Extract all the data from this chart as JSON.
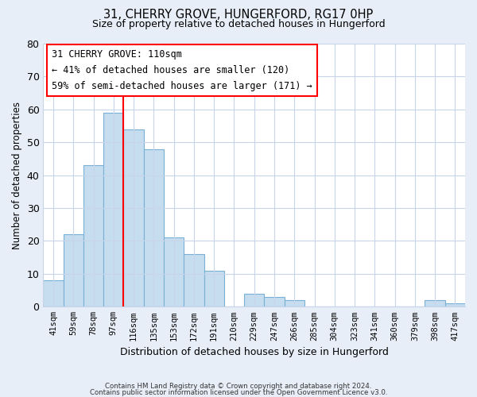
{
  "title1": "31, CHERRY GROVE, HUNGERFORD, RG17 0HP",
  "title2": "Size of property relative to detached houses in Hungerford",
  "xlabel": "Distribution of detached houses by size in Hungerford",
  "ylabel": "Number of detached properties",
  "categories": [
    "41sqm",
    "59sqm",
    "78sqm",
    "97sqm",
    "116sqm",
    "135sqm",
    "153sqm",
    "172sqm",
    "191sqm",
    "210sqm",
    "229sqm",
    "247sqm",
    "266sqm",
    "285sqm",
    "304sqm",
    "323sqm",
    "341sqm",
    "360sqm",
    "379sqm",
    "398sqm",
    "417sqm"
  ],
  "values": [
    8,
    22,
    43,
    59,
    54,
    48,
    21,
    16,
    11,
    0,
    4,
    3,
    2,
    0,
    0,
    0,
    0,
    0,
    0,
    2,
    1
  ],
  "bar_color": "#c5ddef",
  "bar_edge_color": "#7ab0d4",
  "redline_index": 4,
  "ylim": [
    0,
    80
  ],
  "yticks": [
    0,
    10,
    20,
    30,
    40,
    50,
    60,
    70,
    80
  ],
  "annotation_line1": "31 CHERRY GROVE: 110sqm",
  "annotation_line2": "← 41% of detached houses are smaller (120)",
  "annotation_line3": "59% of semi-detached houses are larger (171) →",
  "footer1": "Contains HM Land Registry data © Crown copyright and database right 2024.",
  "footer2": "Contains public sector information licensed under the Open Government Licence v3.0.",
  "bg_color": "#e8eef8",
  "plot_bg_color": "#ffffff",
  "grid_color": "#c8d4e8"
}
